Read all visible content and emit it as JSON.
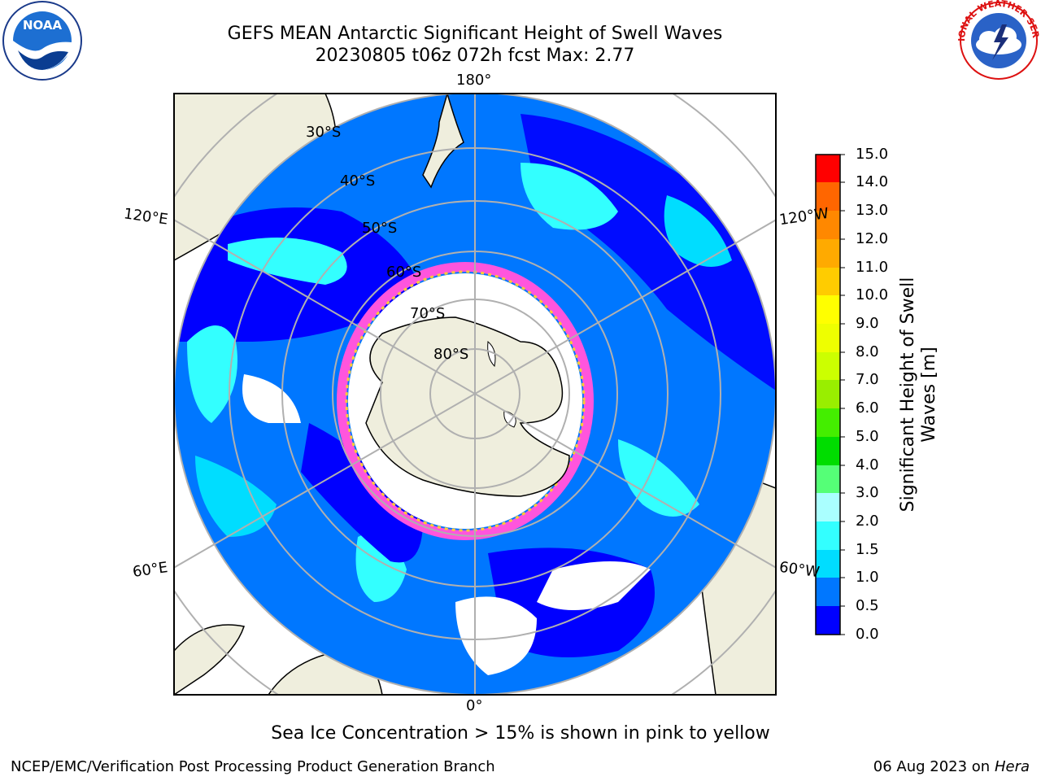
{
  "header": {
    "title_line1": "GEFS MEAN Antarctic Significant Height of Swell Waves",
    "title_line2": "20230805 t06z 072h fcst   Max: 2.77"
  },
  "logos": {
    "noaa_text": "NOAA",
    "nws_text": "NATIONAL WEATHER SERVICE"
  },
  "map": {
    "projection": "south-polar-stereographic",
    "lon_labels": [
      "180°",
      "120°E",
      "120°W",
      "60°E",
      "60°W",
      "0°"
    ],
    "lat_labels": [
      "30°S",
      "40°S",
      "50°S",
      "60°S",
      "70°S",
      "80°S"
    ],
    "land_color": "#efeedd",
    "ocean_outside_color": "#ffffff"
  },
  "colorbar": {
    "label": "Significant Height of Swell Waves [m]",
    "ticks": [
      "15.0",
      "14.0",
      "13.0",
      "12.0",
      "11.0",
      "10.0",
      "9.0",
      "8.0",
      "7.0",
      "6.0",
      "5.0",
      "4.0",
      "3.0",
      "2.0",
      "1.5",
      "1.0",
      "0.5",
      "0.0"
    ],
    "colors": [
      "#0000ff",
      "#0077ff",
      "#00ddff",
      "#33ffff",
      "#aaffff",
      "#55ff77",
      "#00dd00",
      "#44ee00",
      "#99ee00",
      "#ccff00",
      "#eeff00",
      "#ffff00",
      "#ffcc00",
      "#ffaa00",
      "#ff8800",
      "#ff6600",
      "#ff3300",
      "#ff0000"
    ]
  },
  "footer": {
    "note": "Sea Ice Concentration > 15% is shown in pink to yellow",
    "credit": "NCEP/EMC/Verification Post Processing Product Generation Branch",
    "date": "06 Aug 2023 on",
    "system": "Hera"
  }
}
